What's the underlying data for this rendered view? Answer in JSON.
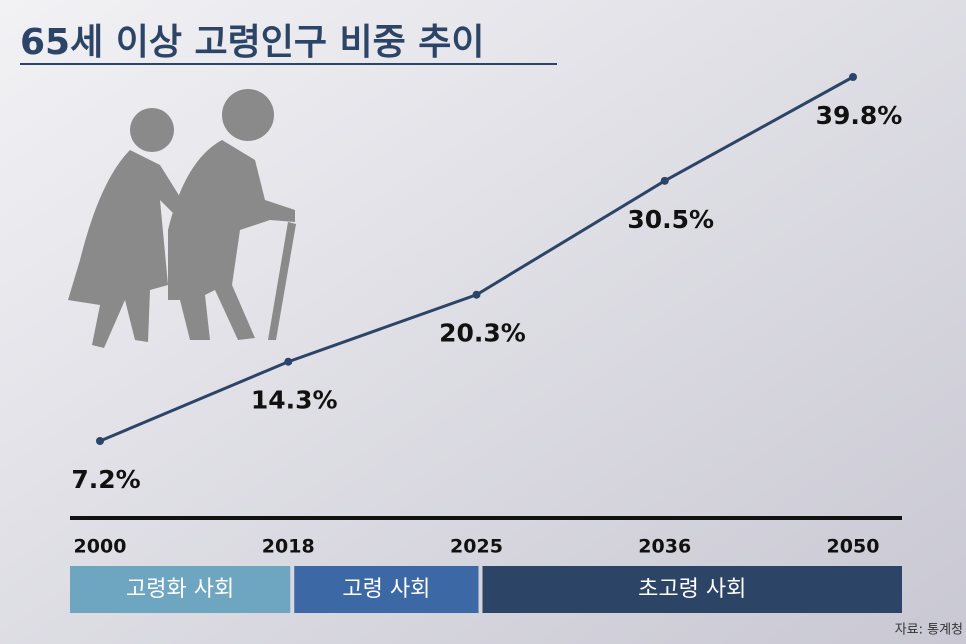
{
  "chart_data": {
    "type": "line",
    "title": "65세 이상 고령인구 비중 추이",
    "categories": [
      "2000",
      "2018",
      "2025",
      "2036",
      "2050"
    ],
    "series": [
      {
        "name": "65세 이상 고령인구 비중",
        "color": "#2c4468",
        "values": [
          7.2,
          14.3,
          20.3,
          30.5,
          39.8
        ],
        "value_labels": [
          "7.2%",
          "14.3%",
          "20.3%",
          "30.5%",
          "39.8%"
        ]
      }
    ],
    "periods": [
      {
        "label": "고령화 사회",
        "color": "#6ea6c1"
      },
      {
        "label": "고령 사회",
        "color": "#3c68a6"
      },
      {
        "label": "초고령 사회",
        "color": "#2c4466"
      }
    ],
    "source": "자료: 통계청"
  }
}
